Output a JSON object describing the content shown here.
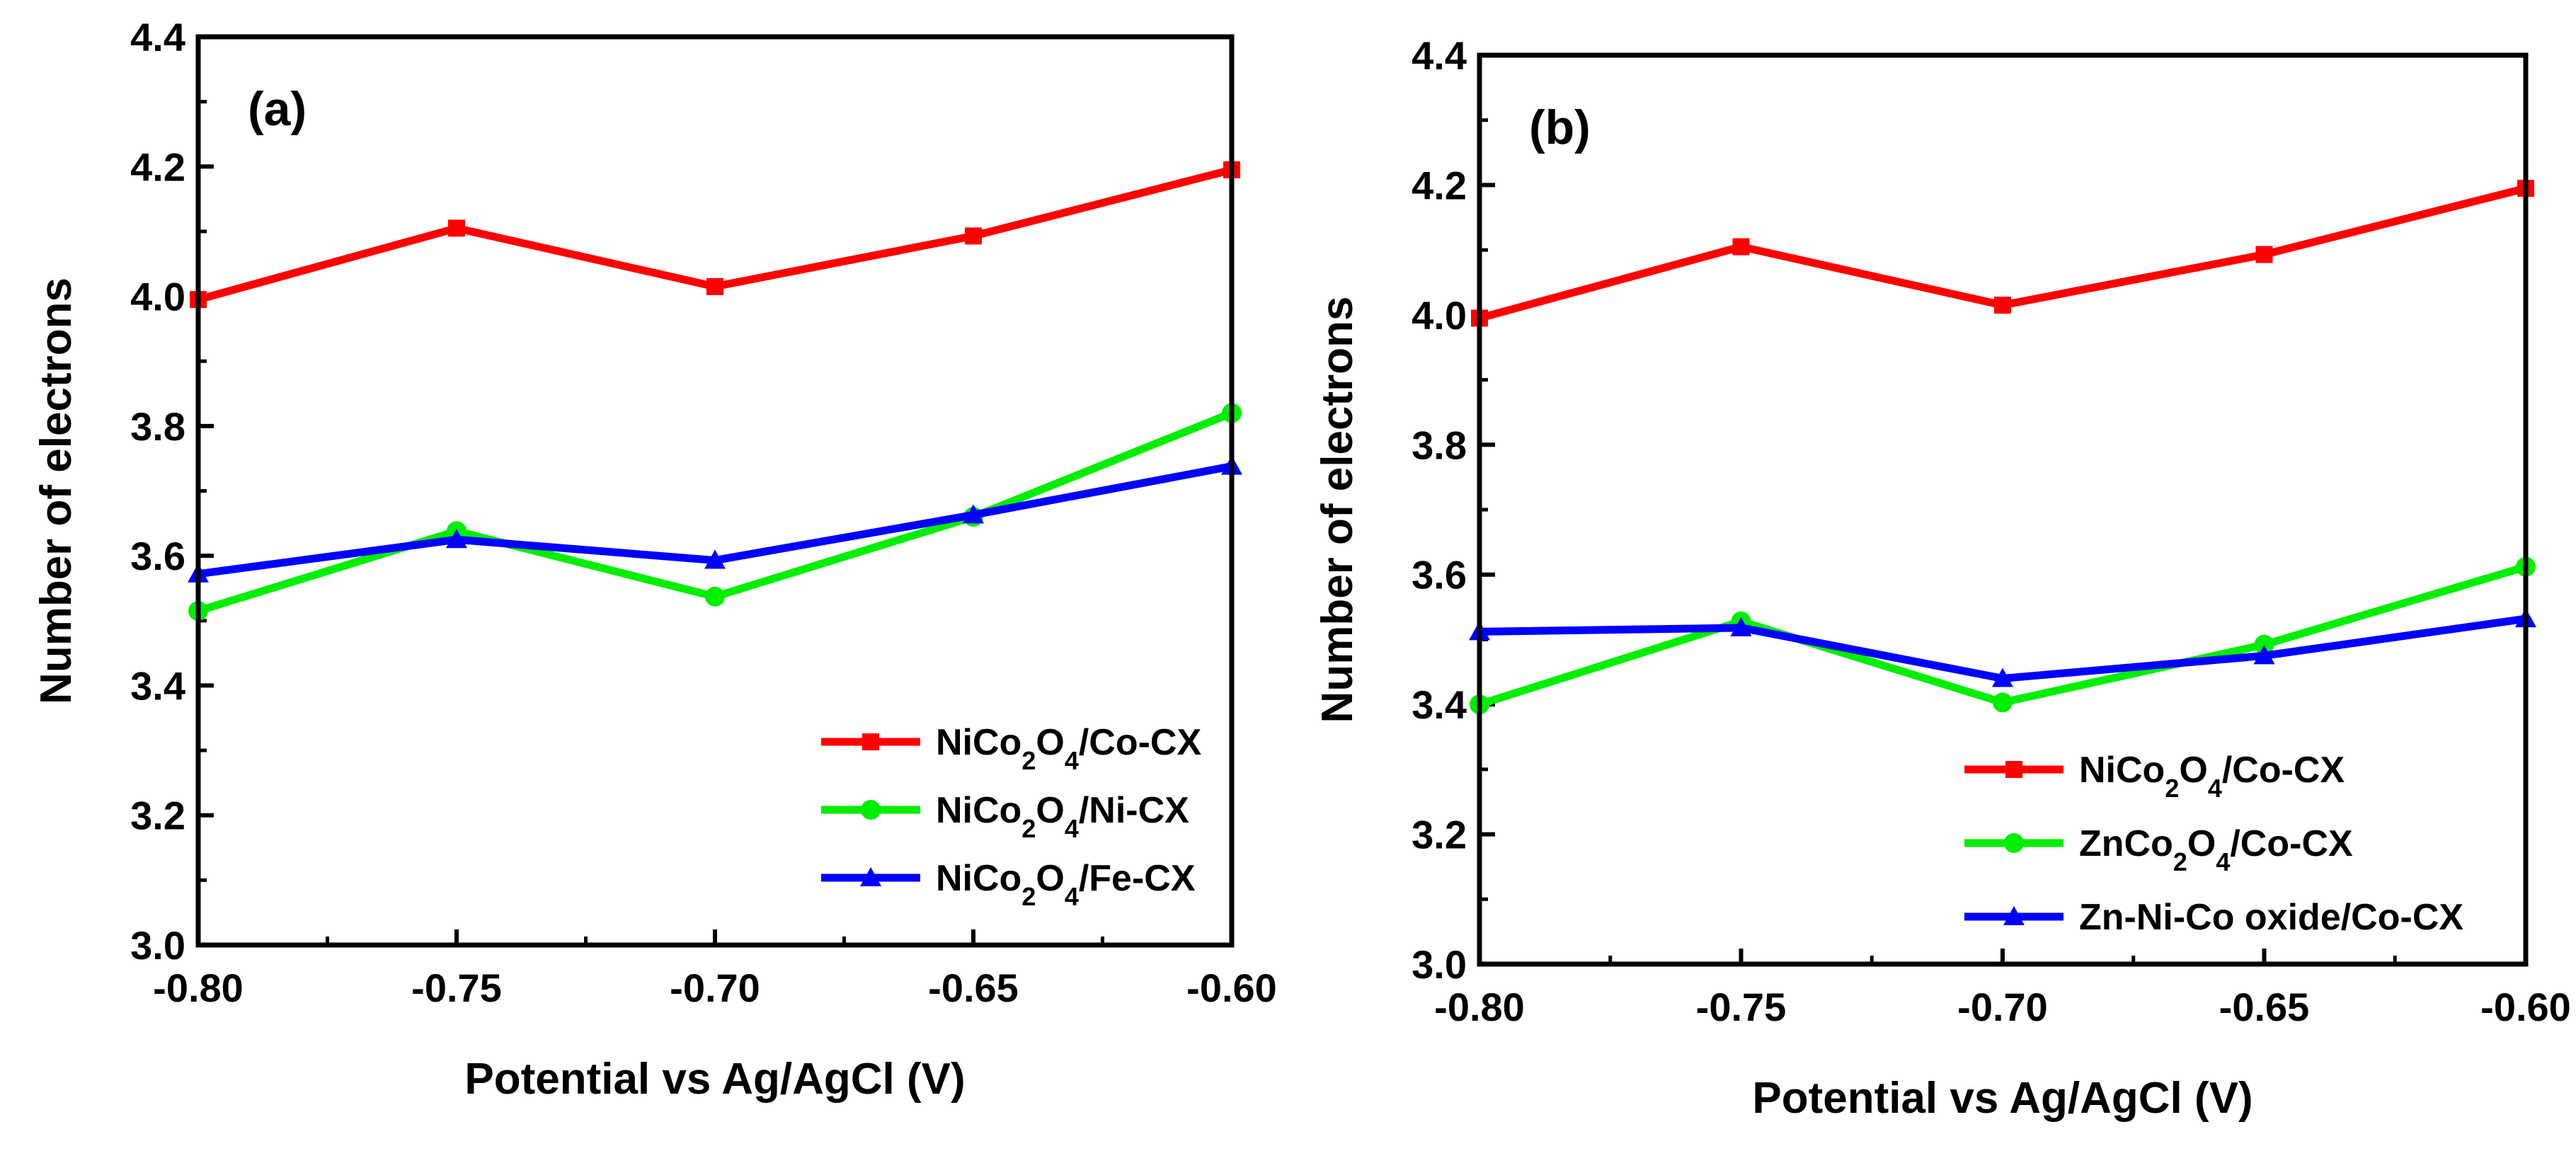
{
  "chart_data": [
    {
      "type": "line",
      "panel_label": "(a)",
      "xlabel": "Potential vs Ag/AgCl (V)",
      "ylabel": "Number of  electrons",
      "xlim": [
        -0.8,
        -0.6
      ],
      "ylim": [
        3.0,
        4.4
      ],
      "xticks": [
        "-0.80",
        "-0.75",
        "-0.70",
        "-0.65",
        "-0.60"
      ],
      "yticks": [
        "3.0",
        "3.2",
        "3.4",
        "3.6",
        "3.8",
        "4.0",
        "4.2",
        "4.4"
      ],
      "legend_position": "bottom-right",
      "x": [
        -0.8,
        -0.75,
        -0.7,
        -0.65,
        -0.6
      ],
      "series": [
        {
          "name": "NiCo2O4/Co-CX",
          "label": {
            "pre": "NiCo",
            "s1": "2",
            "mid": "O",
            "s2": "4",
            "post": "/Co-CX"
          },
          "color": "#ff0000",
          "marker": "square",
          "values": [
            3.995,
            4.105,
            4.015,
            4.093,
            4.195
          ]
        },
        {
          "name": "NiCo2O4/Ni-CX",
          "label": {
            "pre": "NiCo",
            "s1": "2",
            "mid": "O",
            "s2": "4",
            "post": "/Ni-CX"
          },
          "color": "#00ee00",
          "marker": "circle",
          "values": [
            3.515,
            3.638,
            3.537,
            3.66,
            3.82
          ]
        },
        {
          "name": "NiCo2O4/Fe-CX",
          "label": {
            "pre": "NiCo",
            "s1": "2",
            "mid": "O",
            "s2": "4",
            "post": "/Fe-CX"
          },
          "color": "#0000ff",
          "marker": "triangle",
          "values": [
            3.572,
            3.625,
            3.593,
            3.663,
            3.738
          ]
        }
      ]
    },
    {
      "type": "line",
      "panel_label": "(b)",
      "xlabel": "Potential vs Ag/AgCl (V)",
      "ylabel": "Number of  electrons",
      "xlim": [
        -0.8,
        -0.6
      ],
      "ylim": [
        3.0,
        4.4
      ],
      "xticks": [
        "-0.80",
        "-0.75",
        "-0.70",
        "-0.65",
        "-0.60"
      ],
      "yticks": [
        "3.0",
        "3.2",
        "3.4",
        "3.6",
        "3.8",
        "4.0",
        "4.2",
        "4.4"
      ],
      "legend_position": "bottom-right",
      "x": [
        -0.8,
        -0.75,
        -0.7,
        -0.65,
        -0.6
      ],
      "series": [
        {
          "name": "NiCo2O4/Co-CX",
          "label": {
            "pre": "NiCo",
            "s1": "2",
            "mid": "O",
            "s2": "4",
            "post": "/Co-CX"
          },
          "color": "#ff0000",
          "marker": "square",
          "values": [
            3.995,
            4.105,
            4.015,
            4.093,
            4.195
          ]
        },
        {
          "name": "ZnCo2O4/Co-CX",
          "label": {
            "pre": "ZnCo",
            "s1": "2",
            "mid": "O",
            "s2": "4",
            "post": "/Co-CX"
          },
          "color": "#00ee00",
          "marker": "circle",
          "values": [
            3.4,
            3.528,
            3.403,
            3.492,
            3.612
          ]
        },
        {
          "name": "Zn-Ni-Co oxide/Co-CX",
          "label": {
            "pre": "Zn-Ni-Co oxide/Co-CX",
            "s1": "",
            "mid": "",
            "s2": "",
            "post": ""
          },
          "color": "#0000ff",
          "marker": "triangle",
          "values": [
            3.512,
            3.518,
            3.44,
            3.475,
            3.532
          ]
        }
      ]
    }
  ]
}
